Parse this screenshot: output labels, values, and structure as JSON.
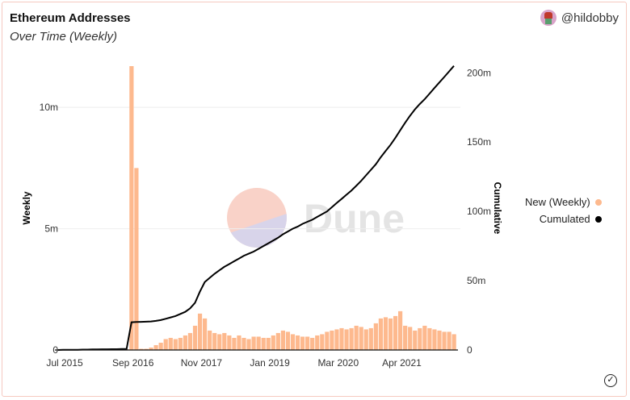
{
  "header": {
    "title": "Ethereum Addresses",
    "subtitle": "Over Time (Weekly)",
    "author": "@hildobby"
  },
  "watermark": "Dune",
  "colors": {
    "weekly": "#fdb98e",
    "cumulated": "#000000",
    "border": "#f6c9c0"
  },
  "icons": {
    "avatar": "avatar-icon",
    "status": "check-circle-icon"
  },
  "chart_data": {
    "type": "bar+line",
    "title": "Ethereum Addresses",
    "subtitle": "Over Time (Weekly)",
    "ylabel_left": "Weekly",
    "ylabel_right": "Cumulative",
    "ylim_left": [
      0,
      11.7
    ],
    "ylim_right": [
      0,
      206
    ],
    "left_ticks": [
      "0",
      "5m",
      "10m"
    ],
    "left_tick_values": [
      0,
      5,
      10
    ],
    "right_ticks": [
      "0",
      "50m",
      "100m",
      "150m",
      "200m"
    ],
    "right_tick_values": [
      0,
      50,
      100,
      150,
      200
    ],
    "x_ticks": [
      "Jul 2015",
      "Sep 2016",
      "Nov 2017",
      "Jan 2019",
      "Mar 2020",
      "Apr 2021"
    ],
    "x_tick_months": [
      "2015-07",
      "2016-09",
      "2017-11",
      "2019-01",
      "2020-03",
      "2021-04"
    ],
    "legend_position": "right",
    "grid": true,
    "x": [
      "2015-07",
      "2015-08",
      "2015-09",
      "2015-10",
      "2015-11",
      "2015-12",
      "2016-01",
      "2016-02",
      "2016-03",
      "2016-04",
      "2016-05",
      "2016-06",
      "2016-07",
      "2016-08",
      "2016-09",
      "2016-10",
      "2016-11",
      "2016-12",
      "2017-01",
      "2017-02",
      "2017-03",
      "2017-04",
      "2017-05",
      "2017-06",
      "2017-07",
      "2017-08",
      "2017-09",
      "2017-10",
      "2017-11",
      "2017-12",
      "2018-01",
      "2018-02",
      "2018-03",
      "2018-04",
      "2018-05",
      "2018-06",
      "2018-07",
      "2018-08",
      "2018-09",
      "2018-10",
      "2018-11",
      "2018-12",
      "2019-01",
      "2019-02",
      "2019-03",
      "2019-04",
      "2019-05",
      "2019-06",
      "2019-07",
      "2019-08",
      "2019-09",
      "2019-10",
      "2019-11",
      "2019-12",
      "2020-01",
      "2020-02",
      "2020-03",
      "2020-04",
      "2020-05",
      "2020-06",
      "2020-07",
      "2020-08",
      "2020-09",
      "2020-10",
      "2020-11",
      "2020-12",
      "2021-01",
      "2021-02",
      "2021-03",
      "2021-04",
      "2021-05",
      "2021-06",
      "2021-07",
      "2021-08",
      "2021-09",
      "2021-10",
      "2021-11",
      "2021-12",
      "2022-01",
      "2022-02",
      "2022-03",
      "2022-04"
    ],
    "series": [
      {
        "name": "New (Weekly)",
        "axis": "left",
        "type": "bar",
        "unit": "m",
        "values": [
          0.01,
          0.02,
          0.02,
          0.02,
          0.02,
          0.02,
          0.02,
          0.03,
          0.03,
          0.03,
          0.03,
          0.03,
          0.03,
          0.03,
          0.03,
          11.7,
          7.5,
          0.05,
          0.05,
          0.1,
          0.2,
          0.3,
          0.45,
          0.5,
          0.45,
          0.5,
          0.6,
          0.7,
          1.0,
          1.5,
          1.3,
          0.8,
          0.7,
          0.65,
          0.7,
          0.6,
          0.5,
          0.6,
          0.5,
          0.45,
          0.55,
          0.55,
          0.5,
          0.5,
          0.6,
          0.7,
          0.8,
          0.75,
          0.65,
          0.6,
          0.55,
          0.55,
          0.5,
          0.6,
          0.65,
          0.75,
          0.8,
          0.85,
          0.9,
          0.85,
          0.9,
          1.0,
          0.95,
          0.85,
          0.9,
          1.1,
          1.3,
          1.35,
          1.3,
          1.4,
          1.6,
          1.0,
          0.95,
          0.8,
          0.9,
          1.0,
          0.9,
          0.85,
          0.8,
          0.75,
          0.75,
          0.65
        ]
      },
      {
        "name": "Cumulated",
        "axis": "right",
        "type": "line",
        "unit": "m",
        "values": [
          0,
          0.1,
          0.1,
          0.2,
          0.2,
          0.3,
          0.3,
          0.4,
          0.4,
          0.5,
          0.5,
          0.6,
          0.6,
          0.7,
          0.7,
          20,
          20.2,
          20.3,
          20.4,
          20.6,
          21,
          21.6,
          22.5,
          23.5,
          24.5,
          26,
          27.5,
          30,
          34,
          42,
          49,
          52,
          55,
          57.5,
          60,
          62,
          64,
          66,
          68,
          69.5,
          71,
          73,
          75,
          77,
          79,
          81,
          83.5,
          85.5,
          87.5,
          89,
          91,
          92.5,
          94,
          96,
          98,
          100,
          103,
          106,
          109,
          112,
          115,
          118.5,
          122,
          126,
          130,
          134,
          139,
          143.5,
          148,
          153,
          158.5,
          164,
          169,
          173.5,
          177.5,
          181,
          185,
          189,
          193,
          197,
          201,
          205
        ]
      }
    ]
  }
}
